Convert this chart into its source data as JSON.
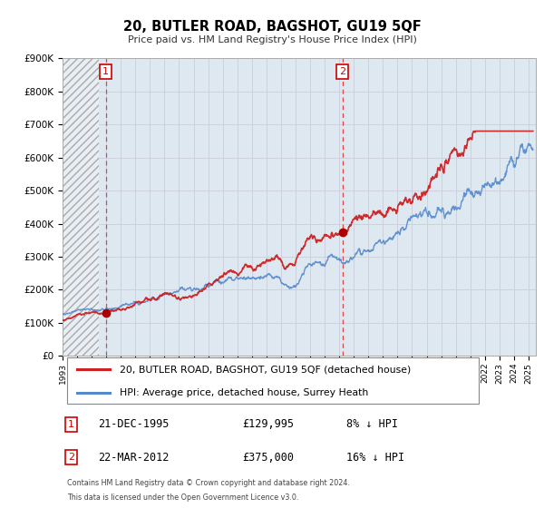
{
  "title": "20, BUTLER ROAD, BAGSHOT, GU19 5QF",
  "subtitle": "Price paid vs. HM Land Registry's House Price Index (HPI)",
  "ylim": [
    0,
    900000
  ],
  "xlim_start": 1993.0,
  "xlim_end": 2025.5,
  "yticks": [
    0,
    100000,
    200000,
    300000,
    400000,
    500000,
    600000,
    700000,
    800000,
    900000
  ],
  "ytick_labels": [
    "£0",
    "£100K",
    "£200K",
    "£300K",
    "£400K",
    "£500K",
    "£600K",
    "£700K",
    "£800K",
    "£900K"
  ],
  "xtick_years": [
    1993,
    1994,
    1995,
    1996,
    1997,
    1998,
    1999,
    2000,
    2001,
    2002,
    2003,
    2004,
    2005,
    2006,
    2007,
    2008,
    2009,
    2010,
    2011,
    2012,
    2013,
    2014,
    2015,
    2016,
    2017,
    2018,
    2019,
    2020,
    2021,
    2022,
    2023,
    2024,
    2025
  ],
  "sale1_x": 1995.97,
  "sale1_y": 129995,
  "sale2_x": 2012.22,
  "sale2_y": 375000,
  "sale1_date": "21-DEC-1995",
  "sale1_price": "£129,995",
  "sale1_hpi": "8% ↓ HPI",
  "sale2_date": "22-MAR-2012",
  "sale2_price": "£375,000",
  "sale2_hpi": "16% ↓ HPI",
  "red_line_color": "#cc2222",
  "blue_line_color": "#5588cc",
  "sale_marker_color": "#aa0000",
  "vline_color": "#dd4444",
  "grid_color": "#ccccdd",
  "chart_bg_color": "#dde8f0",
  "bg_color": "#ffffff",
  "legend_label_red": "20, BUTLER ROAD, BAGSHOT, GU19 5QF (detached house)",
  "legend_label_blue": "HPI: Average price, detached house, Surrey Heath",
  "footer_line1": "Contains HM Land Registry data © Crown copyright and database right 2024.",
  "footer_line2": "This data is licensed under the Open Government Licence v3.0."
}
